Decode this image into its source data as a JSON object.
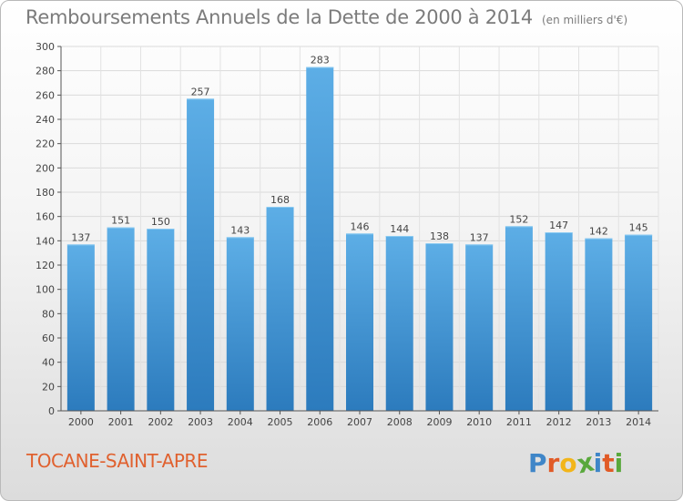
{
  "title": "Remboursements Annuels de la Dette de 2000 à 2014",
  "unit_note": "(en milliers d'€)",
  "commune": "TOCANE-SAINT-APRE",
  "logo": {
    "letters": [
      "P",
      "r",
      "o",
      "x",
      "i",
      "t",
      "i"
    ],
    "colors": [
      "#3f86c8",
      "#e15a26",
      "#f2b51a",
      "#59a83c",
      "#3f86c8",
      "#e15a26",
      "#59a83c"
    ]
  },
  "colors": {
    "bar_top": "#5daee6",
    "bar_bottom": "#2c7bbd",
    "title": "#7b7b7b",
    "commune": "#e0612f"
  },
  "chart_data": {
    "type": "bar",
    "title": "Remboursements Annuels de la Dette de 2000 à 2014",
    "categories": [
      "2000",
      "2001",
      "2002",
      "2003",
      "2004",
      "2005",
      "2006",
      "2007",
      "2008",
      "2009",
      "2010",
      "2011",
      "2012",
      "2013",
      "2014"
    ],
    "values": [
      137,
      151,
      150,
      257,
      143,
      168,
      283,
      146,
      144,
      138,
      137,
      152,
      147,
      142,
      145
    ],
    "data_labels": [
      "137",
      "151",
      "150",
      "257",
      "143",
      "168",
      "283",
      "146",
      "144",
      "138",
      "137",
      "152",
      "147",
      "142",
      "145"
    ],
    "ylim": [
      0,
      300
    ],
    "yticks": [
      "0",
      "20",
      "40",
      "60",
      "80",
      "100",
      "120",
      "140",
      "160",
      "180",
      "200",
      "220",
      "240",
      "260",
      "280",
      "300"
    ],
    "grid": true,
    "legend": "none"
  }
}
